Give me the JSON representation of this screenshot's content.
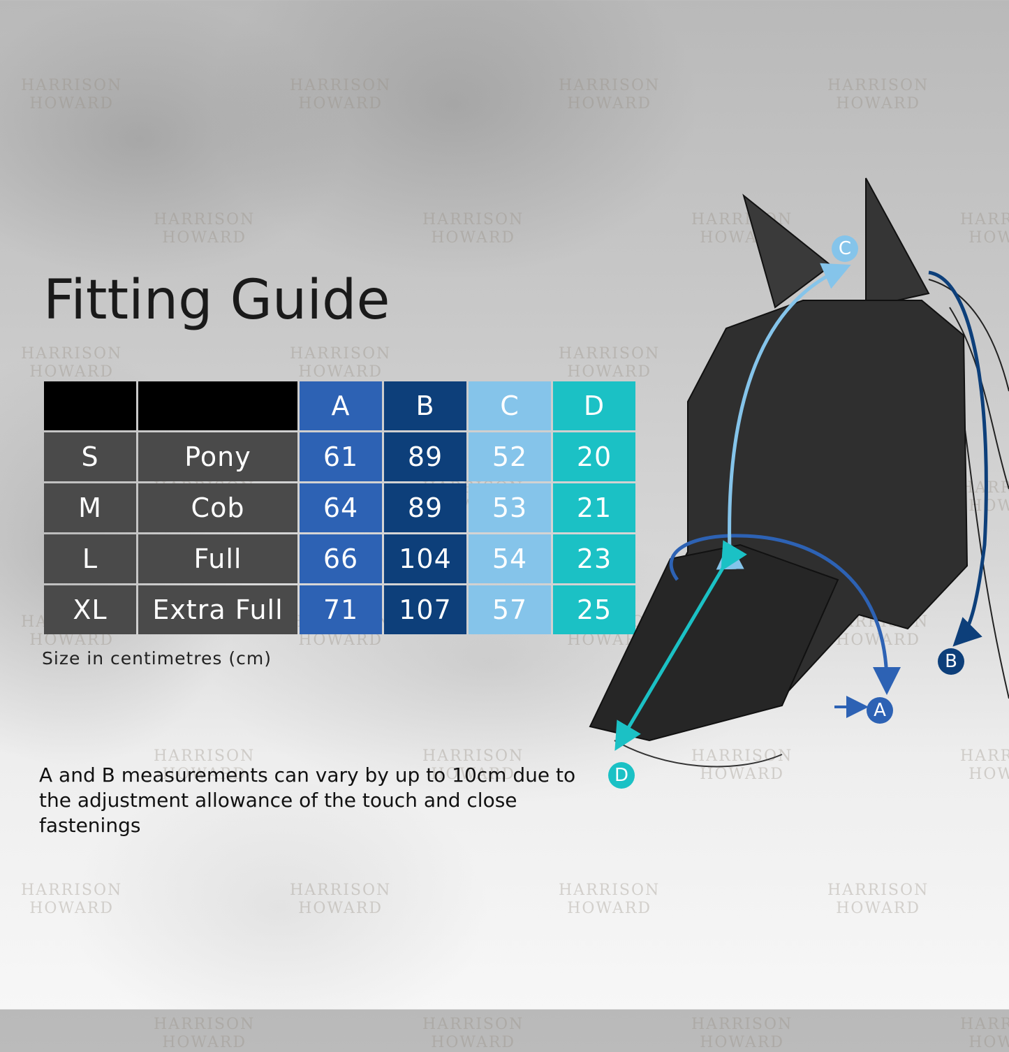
{
  "title": "Fitting Guide",
  "watermark": "HARRISON HOWARD",
  "table": {
    "headers": [
      "",
      "",
      "A",
      "B",
      "C",
      "D"
    ],
    "rows": [
      {
        "size": "S",
        "name": "Pony",
        "A": "61",
        "B": "89",
        "C": "52",
        "D": "20"
      },
      {
        "size": "M",
        "name": "Cob",
        "A": "64",
        "B": "89",
        "C": "53",
        "D": "21"
      },
      {
        "size": "L",
        "name": "Full",
        "A": "66",
        "B": "104",
        "C": "54",
        "D": "23"
      },
      {
        "size": "XL",
        "name": "Extra Full",
        "A": "71",
        "B": "107",
        "C": "57",
        "D": "25"
      }
    ]
  },
  "unit_note": "Size in centimetres (cm)",
  "disclaimer": "A and B measurements can vary by up to 10cm due to the adjustment allowance of the touch and close fastenings",
  "diagram_labels": {
    "A": "A",
    "B": "B",
    "C": "C",
    "D": "D"
  },
  "colors": {
    "A": "#2d62b4",
    "B": "#0d3f7a",
    "C": "#85c4ea",
    "D": "#1bc1c5",
    "size_cells": "#4a4a4a",
    "header_blank": "#000000"
  }
}
